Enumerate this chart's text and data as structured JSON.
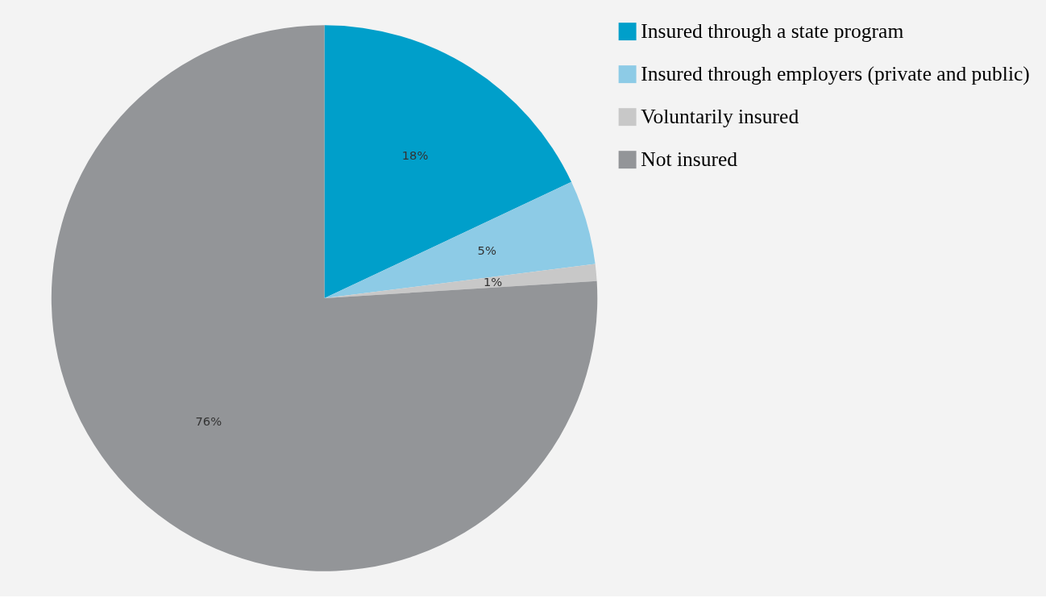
{
  "chart_data": {
    "type": "pie",
    "categories": [
      "Insured through a state program",
      "Insured through employers (private and public)",
      "Voluntarily insured",
      "Not insured"
    ],
    "values": [
      18,
      5,
      1,
      76
    ],
    "colors": [
      "#009fca",
      "#8dcbe6",
      "#c8c8c8",
      "#939598"
    ],
    "value_labels": [
      "18%",
      "5%",
      "1%",
      "76%"
    ],
    "legend": "right"
  }
}
